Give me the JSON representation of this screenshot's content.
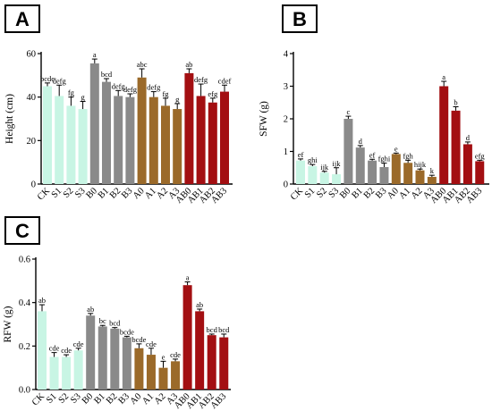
{
  "chart_data": [
    {
      "panel": "A",
      "type": "bar",
      "title": "",
      "xlabel": "",
      "ylabel": "Height (cm)",
      "ylim": [
        0,
        60
      ],
      "yticks": [
        "0",
        "20",
        "40",
        "60"
      ],
      "grid": false,
      "categories": [
        "CK",
        "S1",
        "S2",
        "S3",
        "B0",
        "B1",
        "B2",
        "B3",
        "A0",
        "A1",
        "A2",
        "A3",
        "AB0",
        "AB1",
        "AB2",
        "AB3"
      ],
      "values": [
        45,
        40.5,
        36,
        34.5,
        55.5,
        47,
        40.5,
        40,
        49,
        40,
        36,
        34.5,
        51,
        40.5,
        37.5,
        42.5
      ],
      "errors": [
        1.5,
        5,
        4,
        3.5,
        2,
        1.5,
        2.5,
        1.5,
        4,
        2.5,
        3.5,
        2.5,
        2,
        5.5,
        2,
        3
      ],
      "sig_letters": [
        "bcde",
        "defg",
        "fg",
        "g",
        "a",
        "bcd",
        "defg",
        "defg",
        "abc",
        "defg",
        "fg",
        "g",
        "ab",
        "defg",
        "efg",
        "cdef"
      ],
      "colors": [
        "#c8f5e4",
        "#c8f5e4",
        "#c8f5e4",
        "#c8f5e4",
        "#8a8a8a",
        "#8a8a8a",
        "#8a8a8a",
        "#8a8a8a",
        "#9b6a2a",
        "#9b6a2a",
        "#9b6a2a",
        "#9b6a2a",
        "#a30f12",
        "#a30f12",
        "#a30f12",
        "#a30f12"
      ]
    },
    {
      "panel": "B",
      "type": "bar",
      "title": "",
      "xlabel": "",
      "ylabel": "SFW (g)",
      "ylim": [
        0,
        4
      ],
      "yticks": [
        "0",
        "1",
        "2",
        "3",
        "4"
      ],
      "grid": false,
      "categories": [
        "CK",
        "S1",
        "S2",
        "S3",
        "B0",
        "B1",
        "B2",
        "B3",
        "A0",
        "A1",
        "A2",
        "A3",
        "AB0",
        "AB1",
        "AB2",
        "AB3"
      ],
      "values": [
        0.72,
        0.55,
        0.35,
        0.3,
        2,
        1.12,
        0.72,
        0.52,
        0.92,
        0.65,
        0.42,
        0.22,
        3,
        2.25,
        1.22,
        0.7
      ],
      "errors": [
        0.05,
        0.05,
        0.04,
        0.2,
        0.08,
        0.06,
        0.04,
        0.12,
        0.03,
        0.08,
        0.04,
        0.05,
        0.15,
        0.12,
        0.07,
        0.03
      ],
      "sig_letters": [
        "ef",
        "ghi",
        "ijk",
        "ijk",
        "c",
        "d",
        "ef",
        "fghi",
        "e",
        "fgh",
        "hijk",
        "k",
        "a",
        "b",
        "d",
        "efg"
      ],
      "colors": [
        "#c8f5e4",
        "#c8f5e4",
        "#c8f5e4",
        "#c8f5e4",
        "#8a8a8a",
        "#8a8a8a",
        "#8a8a8a",
        "#8a8a8a",
        "#9b6a2a",
        "#9b6a2a",
        "#9b6a2a",
        "#9b6a2a",
        "#a30f12",
        "#a30f12",
        "#a30f12",
        "#a30f12"
      ]
    },
    {
      "panel": "C",
      "type": "bar",
      "title": "",
      "xlabel": "",
      "ylabel": "RFW (g)",
      "ylim": [
        0,
        0.6
      ],
      "yticks": [
        "0.0",
        "0.2",
        "0.4",
        "0.6"
      ],
      "grid": false,
      "categories": [
        "CK",
        "S1",
        "S2",
        "S3",
        "B0",
        "B1",
        "B2",
        "B3",
        "A0",
        "A1",
        "A2",
        "A3",
        "AB0",
        "AB1",
        "AB2",
        "AB3"
      ],
      "values": [
        0.36,
        0.15,
        0.15,
        0.18,
        0.34,
        0.29,
        0.28,
        0.24,
        0.19,
        0.16,
        0.1,
        0.13,
        0.48,
        0.36,
        0.25,
        0.24
      ],
      "errors": [
        0.03,
        0.02,
        0.01,
        0.01,
        0.01,
        0.005,
        0.005,
        0.005,
        0.02,
        0.03,
        0.03,
        0.01,
        0.015,
        0.01,
        0.005,
        0.015
      ],
      "sig_letters": [
        "ab",
        "cde",
        "cde",
        "cde",
        "ab",
        "bc",
        "bcd",
        "bcde",
        "bcde",
        "cde",
        "e",
        "cde",
        "a",
        "ab",
        "bcd",
        "bcd"
      ],
      "colors": [
        "#c8f5e4",
        "#c8f5e4",
        "#c8f5e4",
        "#c8f5e4",
        "#8a8a8a",
        "#8a8a8a",
        "#8a8a8a",
        "#8a8a8a",
        "#9b6a2a",
        "#9b6a2a",
        "#9b6a2a",
        "#9b6a2a",
        "#a30f12",
        "#a30f12",
        "#a30f12",
        "#a30f12"
      ]
    }
  ]
}
